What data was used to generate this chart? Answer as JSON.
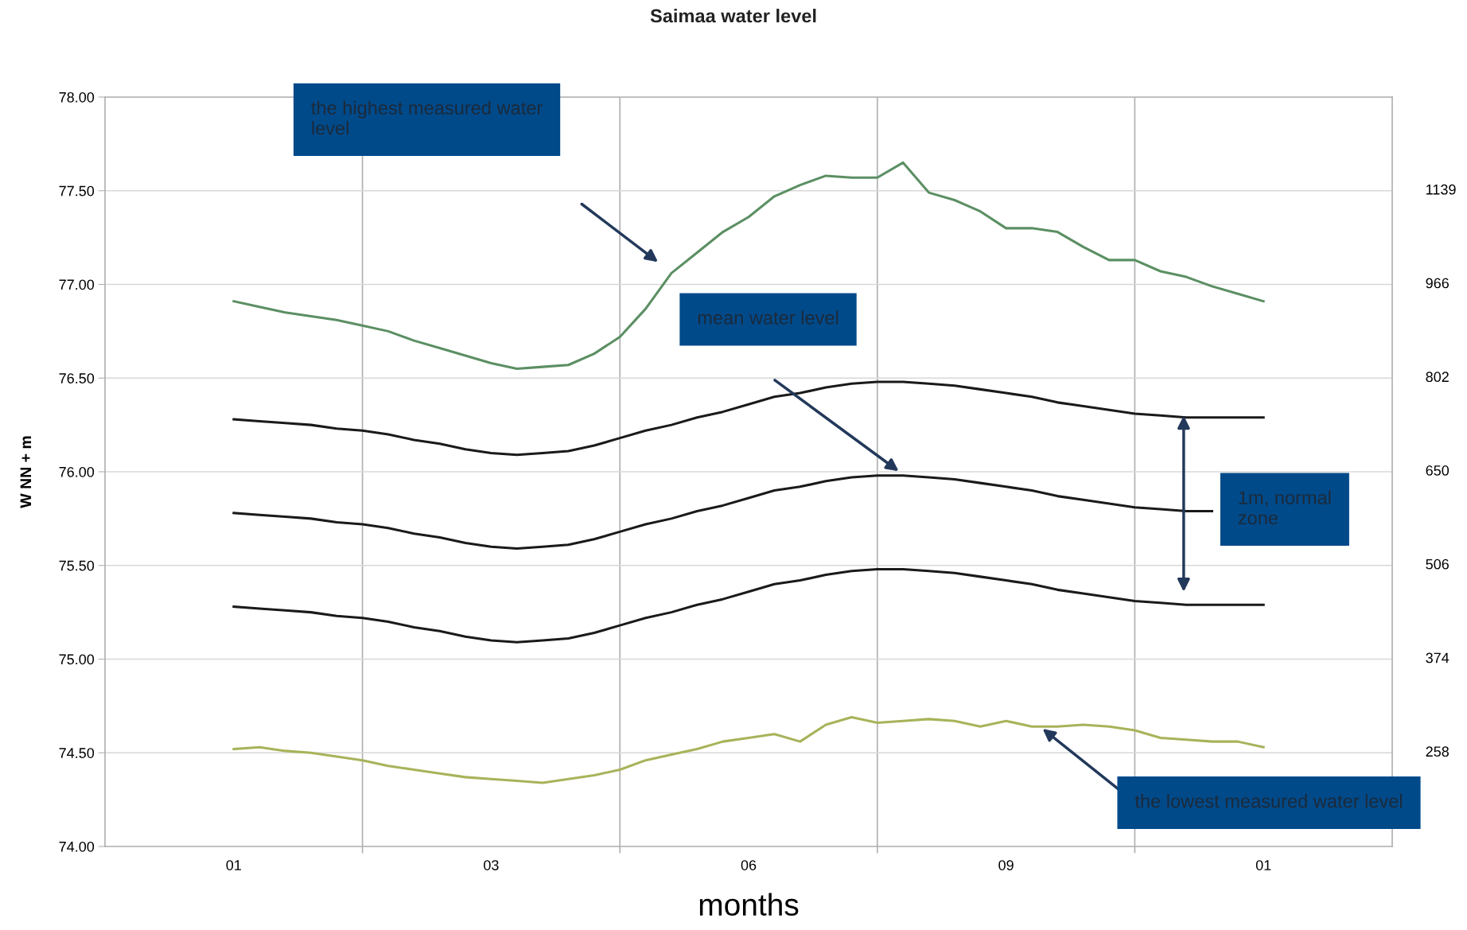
{
  "chart_data": {
    "type": "line",
    "title": "Saimaa water level",
    "xlabel": "months",
    "ylabel": "W NN + m",
    "categories": [
      "01",
      null,
      null,
      null,
      null,
      null,
      null,
      null,
      null,
      null,
      "03",
      null,
      null,
      null,
      null,
      null,
      null,
      null,
      null,
      null,
      "06",
      null,
      null,
      null,
      null,
      null,
      null,
      null,
      null,
      null,
      "09",
      null,
      null,
      null,
      null,
      null,
      null,
      null,
      null,
      null,
      "01"
    ],
    "ylim": [
      74,
      78
    ],
    "yticks": [
      {
        "value": 74,
        "label": "74.00"
      },
      {
        "value": 74.5,
        "label": "74.50"
      },
      {
        "value": 75,
        "label": "75.00"
      },
      {
        "value": 75.5,
        "label": "75.50"
      },
      {
        "value": 76,
        "label": "76.00"
      },
      {
        "value": 76.5,
        "label": "76.50"
      },
      {
        "value": 77,
        "label": "77.00"
      },
      {
        "value": 77.5,
        "label": "77.50"
      },
      {
        "value": 78,
        "label": "78.00"
      }
    ],
    "grid": true,
    "legend": false,
    "series": [
      {
        "color": "#5b8f63",
        "values": [
          76.91,
          76.88,
          76.85,
          76.83,
          76.81,
          76.78,
          76.75,
          76.7,
          76.66,
          76.62,
          76.58,
          76.55,
          76.56,
          76.57,
          76.63,
          76.72,
          76.87,
          77.06,
          77.17,
          77.28,
          77.36,
          77.47,
          77.53,
          77.58,
          77.57,
          77.57,
          77.65,
          77.49,
          77.45,
          77.39,
          77.3,
          77.3,
          77.28,
          77.2,
          77.13,
          77.13,
          77.07,
          77.04,
          76.99,
          76.95,
          76.91
        ]
      },
      {
        "color": "#1a1a1a",
        "values": [
          76.28,
          76.27,
          76.26,
          76.25,
          76.23,
          76.22,
          76.2,
          76.17,
          76.15,
          76.12,
          76.1,
          76.09,
          76.1,
          76.11,
          76.14,
          76.18,
          76.22,
          76.25,
          76.29,
          76.32,
          76.36,
          76.4,
          76.42,
          76.45,
          76.47,
          76.48,
          76.48,
          76.47,
          76.46,
          76.44,
          76.42,
          76.4,
          76.37,
          76.35,
          76.33,
          76.31,
          76.3,
          76.29,
          76.29,
          76.29,
          76.29
        ]
      },
      {
        "color": "#1a1a1a",
        "values": [
          75.78,
          75.77,
          75.76,
          75.75,
          75.73,
          75.72,
          75.7,
          75.67,
          75.65,
          75.62,
          75.6,
          75.59,
          75.6,
          75.61,
          75.64,
          75.68,
          75.72,
          75.75,
          75.79,
          75.82,
          75.86,
          75.9,
          75.92,
          75.95,
          75.97,
          75.98,
          75.98,
          75.97,
          75.96,
          75.94,
          75.92,
          75.9,
          75.87,
          75.85,
          75.83,
          75.81,
          75.8,
          75.79,
          75.79,
          null,
          null
        ]
      },
      {
        "color": "#1a1a1a",
        "values": [
          75.28,
          75.27,
          75.26,
          75.25,
          75.23,
          75.22,
          75.2,
          75.17,
          75.15,
          75.12,
          75.1,
          75.09,
          75.1,
          75.11,
          75.14,
          75.18,
          75.22,
          75.25,
          75.29,
          75.32,
          75.36,
          75.4,
          75.42,
          75.45,
          75.47,
          75.48,
          75.48,
          75.47,
          75.46,
          75.44,
          75.42,
          75.4,
          75.37,
          75.35,
          75.33,
          75.31,
          75.3,
          75.29,
          75.29,
          75.29,
          75.29
        ]
      },
      {
        "color": "#a8b35a",
        "values": [
          74.52,
          74.53,
          74.51,
          74.5,
          74.48,
          74.46,
          74.43,
          74.41,
          74.39,
          74.37,
          74.36,
          74.35,
          74.34,
          74.36,
          74.38,
          74.41,
          74.46,
          74.49,
          74.52,
          74.56,
          74.58,
          74.6,
          74.56,
          74.65,
          74.69,
          74.66,
          74.67,
          74.68,
          74.67,
          74.64,
          74.67,
          74.64,
          74.64,
          74.65,
          74.64,
          74.62,
          74.58,
          74.57,
          74.56,
          74.56,
          74.53
        ]
      }
    ],
    "annotations": [
      "the highest measured water level",
      "mean water level",
      "the lowest measured water level",
      "1m, normal zone",
      "258",
      "374",
      "506",
      "650",
      "802",
      "966",
      "1139"
    ]
  }
}
